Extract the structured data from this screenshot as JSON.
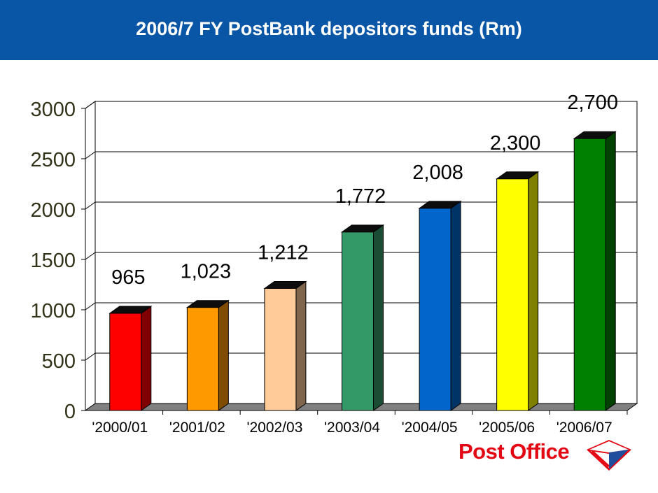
{
  "header": {
    "title": "2006/7 FY PostBank depositors funds (Rm)",
    "background_color": "#0a56a6"
  },
  "logo": {
    "text": "Post Office",
    "color": "#e30613"
  },
  "chart_data": {
    "type": "bar",
    "title": "2006/7 FY PostBank depositors funds (Rm)",
    "xlabel": "",
    "ylabel": "",
    "categories": [
      "'2000/01",
      "'2001/02",
      "'2002/03",
      "'2003/04",
      "'2004/05",
      "'2005/06",
      "'2006/07"
    ],
    "values": [
      965,
      1023,
      1212,
      1772,
      2008,
      2300,
      2700
    ],
    "data_labels": [
      "965",
      "1,023",
      "1,212",
      "1,772",
      "2,008",
      "2,300",
      "2,700"
    ],
    "colors": [
      "#ff0000",
      "#ff9900",
      "#ffcc99",
      "#339966",
      "#0066cc",
      "#ffff00",
      "#008000"
    ],
    "ylim": [
      0,
      3000
    ],
    "yticks": [
      "0",
      "500",
      "1000",
      "1500",
      "2000",
      "2500",
      "3000"
    ],
    "grid": true,
    "legend": "none",
    "style": "3d"
  }
}
